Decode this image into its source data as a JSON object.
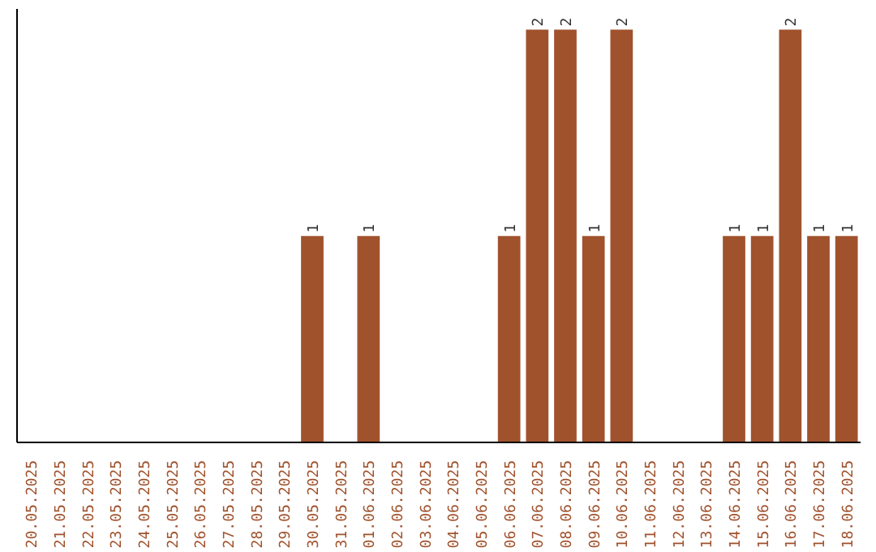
{
  "chart_data": {
    "type": "bar",
    "categories": [
      "20.05.2025",
      "21.05.2025",
      "22.05.2025",
      "23.05.2025",
      "24.05.2025",
      "25.05.2025",
      "26.05.2025",
      "27.05.2025",
      "28.05.2025",
      "29.05.2025",
      "30.05.2025",
      "31.05.2025",
      "01.06.2025",
      "02.06.2025",
      "03.06.2025",
      "04.06.2025",
      "05.06.2025",
      "06.06.2025",
      "07.06.2025",
      "08.06.2025",
      "09.06.2025",
      "10.06.2025",
      "11.06.2025",
      "12.06.2025",
      "13.06.2025",
      "14.06.2025",
      "15.06.2025",
      "16.06.2025",
      "17.06.2025",
      "18.06.2025"
    ],
    "values": [
      0,
      0,
      0,
      0,
      0,
      0,
      0,
      0,
      0,
      0,
      1,
      0,
      1,
      0,
      0,
      0,
      0,
      1,
      2,
      2,
      1,
      2,
      0,
      0,
      0,
      1,
      1,
      2,
      1,
      1
    ],
    "value_labels": [
      null,
      null,
      null,
      null,
      null,
      null,
      null,
      null,
      null,
      null,
      "1",
      null,
      "1",
      null,
      null,
      null,
      null,
      "1",
      "2",
      "2",
      "1",
      "2",
      null,
      null,
      null,
      "1",
      "1",
      "2",
      "1",
      "1"
    ],
    "color": "#a0522d",
    "grid": false
  }
}
